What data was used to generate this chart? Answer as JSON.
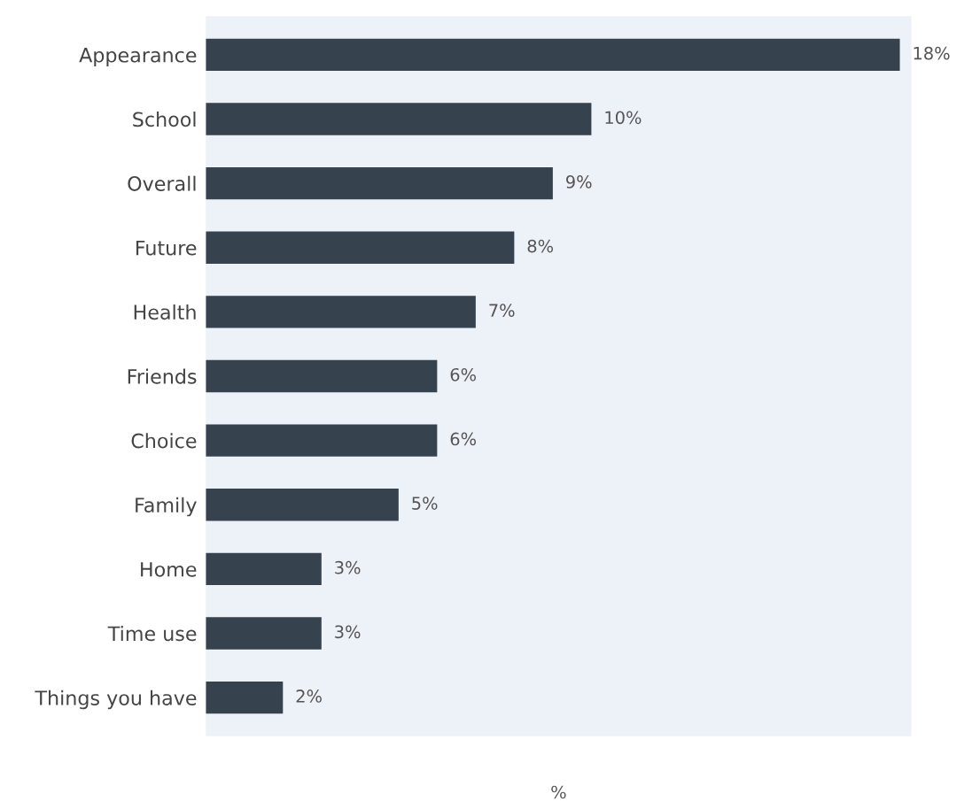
{
  "chart_data": {
    "type": "bar",
    "orientation": "horizontal",
    "xlabel": "%",
    "categories": [
      "Appearance",
      "School",
      "Overall",
      "Future",
      "Health",
      "Friends",
      "Choice",
      "Family",
      "Home",
      "Time use",
      "Things you have"
    ],
    "values": [
      18,
      10,
      9,
      8,
      7,
      6,
      6,
      5,
      3,
      3,
      2
    ],
    "value_labels": [
      "18%",
      "10%",
      "9%",
      "8%",
      "7%",
      "6%",
      "6%",
      "5%",
      "3%",
      "3%",
      "2%"
    ],
    "color": "#36434f",
    "tick_labels": "y",
    "grid": false
  }
}
